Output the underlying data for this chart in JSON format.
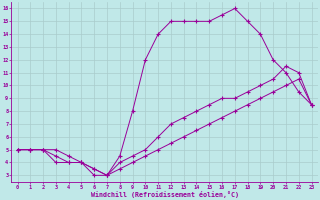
{
  "xlabel": "Windchill (Refroidissement éolien,°C)",
  "bg_color": "#c0e8e8",
  "line_color": "#990099",
  "grid_color": "#aacccc",
  "xlim": [
    -0.5,
    23.5
  ],
  "ylim": [
    2.5,
    16.5
  ],
  "xticks": [
    0,
    1,
    2,
    3,
    4,
    5,
    6,
    7,
    8,
    9,
    10,
    11,
    12,
    13,
    14,
    15,
    16,
    17,
    18,
    19,
    20,
    21,
    22,
    23
  ],
  "yticks": [
    3,
    4,
    5,
    6,
    7,
    8,
    9,
    10,
    11,
    12,
    13,
    14,
    15,
    16
  ],
  "curve1_x": [
    0,
    1,
    2,
    3,
    4,
    5,
    6,
    7,
    8,
    9,
    10,
    11,
    12,
    13,
    14,
    15,
    16,
    17,
    18,
    19,
    20,
    21,
    22,
    23
  ],
  "curve1_y": [
    5,
    5,
    5,
    5,
    4.5,
    4,
    3,
    3,
    4.5,
    8,
    12,
    14,
    15,
    15,
    15,
    15,
    15.5,
    16,
    15,
    14,
    12,
    11,
    9.5,
    8.5
  ],
  "curve2_x": [
    0,
    1,
    2,
    3,
    4,
    5,
    6,
    7,
    8,
    9,
    10,
    11,
    12,
    13,
    14,
    15,
    16,
    17,
    18,
    19,
    20,
    21,
    22,
    23
  ],
  "curve2_y": [
    5,
    5,
    5,
    4,
    4,
    4,
    3.5,
    3,
    4,
    4.5,
    5,
    6,
    7,
    7.5,
    8,
    8.5,
    9,
    9,
    9.5,
    10,
    10.5,
    11.5,
    11,
    8.5
  ],
  "curve3_x": [
    0,
    1,
    2,
    3,
    4,
    5,
    6,
    7,
    8,
    9,
    10,
    11,
    12,
    13,
    14,
    15,
    16,
    17,
    18,
    19,
    20,
    21,
    22,
    23
  ],
  "curve3_y": [
    5,
    5,
    5,
    4.5,
    4,
    4,
    3.5,
    3,
    3.5,
    4,
    4.5,
    5,
    5.5,
    6,
    6.5,
    7,
    7.5,
    8,
    8.5,
    9,
    9.5,
    10,
    10.5,
    8.5
  ]
}
